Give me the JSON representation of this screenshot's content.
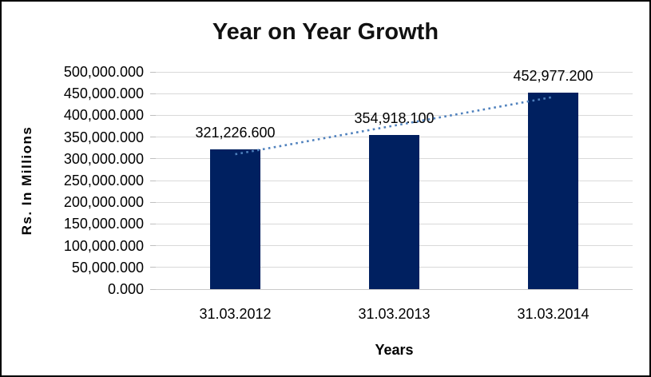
{
  "chart_data": {
    "type": "bar",
    "title": "Year on Year Growth",
    "xlabel": "Years",
    "ylabel": "Rs. In Millions",
    "categories": [
      "31.03.2012",
      "31.03.2013",
      "31.03.2014"
    ],
    "values": [
      321226.6,
      354918.1,
      452977.2
    ],
    "value_labels": [
      "321,226.600",
      "354,918.100",
      "452,977.200"
    ],
    "y_ticks": [
      {
        "value": 500000,
        "label": "500,000.000"
      },
      {
        "value": 450000,
        "label": "450,000.000"
      },
      {
        "value": 400000,
        "label": "400,000.000"
      },
      {
        "value": 350000,
        "label": "350,000.000"
      },
      {
        "value": 300000,
        "label": "300,000.000"
      },
      {
        "value": 250000,
        "label": "250,000.000"
      },
      {
        "value": 200000,
        "label": "200,000.000"
      },
      {
        "value": 150000,
        "label": "150,000.000"
      },
      {
        "value": 100000,
        "label": "100,000.000"
      },
      {
        "value": 50000,
        "label": "50,000.000"
      },
      {
        "value": 0,
        "label": "0.000"
      }
    ],
    "ylim": [
      0,
      500000
    ],
    "grid": true,
    "legend": "none",
    "trendline": {
      "type": "linear",
      "style": "dotted"
    },
    "colors": {
      "bar": "#002060",
      "trendline": "#4f81bd",
      "gridline": "#d9d9d9",
      "axis": "#bfbfbf",
      "text": "#000000",
      "background": "#ffffff",
      "border": "#000000"
    }
  }
}
